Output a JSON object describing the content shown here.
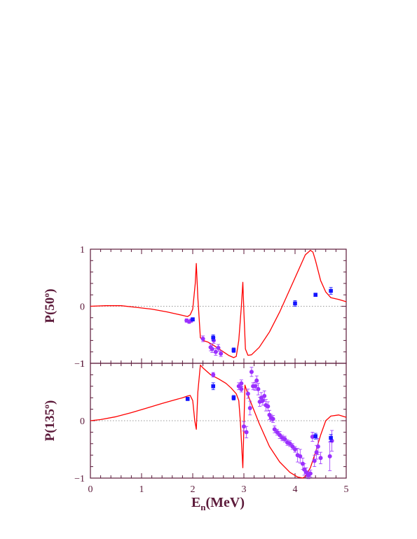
{
  "chart_data": [
    {
      "type": "line",
      "panel": "top",
      "ylabel": {
        "main": "P(50",
        "sup": "o",
        "close": ")"
      },
      "xlim": [
        0,
        5
      ],
      "ylim": [
        -1,
        1
      ],
      "yticks": [
        -1,
        0,
        1
      ],
      "ytick_labels": [
        "−1",
        "0",
        "1"
      ],
      "zero_line": "dotted",
      "colors": {
        "curve": "#ff0000",
        "points": "#9b30ff",
        "squares": "#1414ff",
        "axis": "#5c1a3a"
      },
      "series": [
        {
          "kind": "curve",
          "x": [
            0,
            0.3,
            0.6,
            0.9,
            1.2,
            1.5,
            1.7,
            1.8,
            1.9,
            1.95,
            2.0,
            2.05,
            2.07,
            2.1,
            2.15,
            2.2,
            2.3,
            2.4,
            2.5,
            2.6,
            2.7,
            2.8,
            2.85,
            2.9,
            2.95,
            2.98,
            3.0,
            3.03,
            3.08,
            3.15,
            3.3,
            3.5,
            3.7,
            3.9,
            4.1,
            4.2,
            4.3,
            4.35,
            4.4,
            4.5,
            4.6,
            4.7,
            4.85,
            5.0
          ],
          "y": [
            0,
            0.01,
            0.01,
            -0.02,
            -0.05,
            -0.1,
            -0.14,
            -0.16,
            -0.18,
            -0.15,
            -0.05,
            0.4,
            0.75,
            0.15,
            -0.55,
            -0.6,
            -0.63,
            -0.68,
            -0.74,
            -0.8,
            -0.86,
            -0.9,
            -0.88,
            -0.6,
            0.0,
            0.42,
            -0.1,
            -0.75,
            -0.86,
            -0.85,
            -0.72,
            -0.45,
            -0.1,
            0.3,
            0.7,
            0.9,
            0.98,
            0.95,
            0.8,
            0.45,
            0.25,
            0.15,
            0.12,
            0.08
          ]
        },
        {
          "kind": "circles",
          "x": [
            1.88,
            1.93,
            1.97,
            2.2,
            2.35,
            2.38,
            2.41,
            2.45,
            2.5,
            2.55
          ],
          "y": [
            -0.25,
            -0.27,
            -0.25,
            -0.57,
            -0.72,
            -0.75,
            -0.6,
            -0.8,
            -0.73,
            -0.83
          ],
          "err": [
            0.03,
            0.03,
            0.03,
            0.05,
            0.06,
            0.06,
            0.05,
            0.06,
            0.06,
            0.05
          ]
        },
        {
          "kind": "squares",
          "x": [
            2.0,
            2.4,
            2.8,
            4.0,
            4.4,
            4.7
          ],
          "y": [
            -0.23,
            -0.55,
            -0.77,
            0.05,
            0.2,
            0.27
          ],
          "err": [
            0.03,
            0.05,
            0.04,
            0.05,
            0.03,
            0.06
          ]
        }
      ]
    },
    {
      "type": "line",
      "panel": "bottom",
      "ylabel": {
        "main": "P(135",
        "sup": "o",
        "close": ")"
      },
      "xlabel": {
        "main": "E",
        "sub": "n",
        "rest": "(MeV)"
      },
      "xlim": [
        0,
        5
      ],
      "ylim": [
        -1,
        1
      ],
      "xticks": [
        0,
        1,
        2,
        3,
        4,
        5
      ],
      "xtick_labels": [
        "0",
        "1",
        "2",
        "3",
        "4",
        "5"
      ],
      "yticks": [
        -1,
        0,
        1
      ],
      "ytick_labels": [
        "−1",
        "0",
        "1"
      ],
      "zero_line": "dotted",
      "colors": {
        "curve": "#ff0000",
        "points": "#9b30ff",
        "squares": "#1414ff",
        "axis": "#5c1a3a"
      },
      "series": [
        {
          "kind": "curve",
          "x": [
            0,
            0.2,
            0.5,
            0.8,
            1.1,
            1.4,
            1.6,
            1.8,
            1.9,
            1.95,
            2.0,
            2.04,
            2.07,
            2.1,
            2.15,
            2.2,
            2.35,
            2.5,
            2.65,
            2.75,
            2.85,
            2.9,
            2.93,
            2.96,
            2.98,
            3.02,
            3.1,
            3.3,
            3.5,
            3.7,
            3.9,
            4.05,
            4.15,
            4.2,
            4.3,
            4.4,
            4.5,
            4.6,
            4.7,
            4.85,
            5.0
          ],
          "y": [
            0,
            0.02,
            0.07,
            0.14,
            0.22,
            0.3,
            0.35,
            0.4,
            0.43,
            0.44,
            0.35,
            0.0,
            -0.15,
            0.5,
            0.97,
            0.92,
            0.8,
            0.73,
            0.65,
            0.57,
            0.47,
            0.35,
            0.0,
            -0.5,
            -0.82,
            0.62,
            0.4,
            -0.05,
            -0.45,
            -0.72,
            -0.9,
            -0.98,
            -1.0,
            -0.97,
            -0.82,
            -0.55,
            -0.25,
            0.0,
            0.08,
            0.1,
            0.06
          ]
        },
        {
          "kind": "circles",
          "x": [
            2.4,
            2.95,
            3.0,
            3.05,
            3.08,
            3.12,
            3.15,
            3.18,
            3.22,
            3.25,
            3.28,
            3.31,
            3.34,
            3.37,
            3.4,
            3.43,
            3.47,
            3.5,
            3.53,
            3.57,
            3.6,
            3.65,
            3.7,
            3.75,
            3.8,
            3.85,
            3.9,
            3.95,
            4.0,
            4.05,
            4.1,
            4.15,
            4.18,
            4.22,
            4.26,
            4.3,
            4.34,
            4.38,
            4.42,
            4.45,
            4.5,
            4.68,
            4.72,
            2.9,
            2.95
          ],
          "y": [
            0.8,
            0.55,
            -0.1,
            -0.2,
            0.47,
            0.22,
            0.85,
            0.6,
            0.6,
            0.7,
            0.55,
            0.33,
            0.4,
            0.35,
            0.43,
            0.27,
            0.25,
            0.1,
            0.05,
            0.03,
            -0.15,
            -0.2,
            -0.25,
            -0.3,
            -0.32,
            -0.38,
            -0.4,
            -0.45,
            -0.5,
            -0.6,
            -0.62,
            -0.75,
            -0.85,
            -0.9,
            -0.95,
            -0.92,
            -0.28,
            -0.7,
            -0.55,
            -0.45,
            -0.65,
            -0.62,
            -0.35,
            0.6,
            0.65
          ],
          "err": [
            0.04,
            0.05,
            0.08,
            0.1,
            0.08,
            0.12,
            0.08,
            0.06,
            0.07,
            0.08,
            0.1,
            0.08,
            0.09,
            0.08,
            0.09,
            0.1,
            0.08,
            0.08,
            0.06,
            0.06,
            0.06,
            0.05,
            0.06,
            0.05,
            0.05,
            0.05,
            0.05,
            0.05,
            0.05,
            0.12,
            0.12,
            0.1,
            0.1,
            0.08,
            0.06,
            0.06,
            0.08,
            0.1,
            0.12,
            0.14,
            0.1,
            0.25,
            0.18,
            0.06,
            0.06
          ]
        },
        {
          "kind": "squares",
          "x": [
            1.9,
            2.4,
            2.8,
            4.4,
            4.7
          ],
          "y": [
            0.38,
            0.6,
            0.4,
            -0.27,
            -0.3
          ],
          "err": [
            0.03,
            0.06,
            0.04,
            0.05,
            0.06
          ]
        }
      ]
    }
  ]
}
